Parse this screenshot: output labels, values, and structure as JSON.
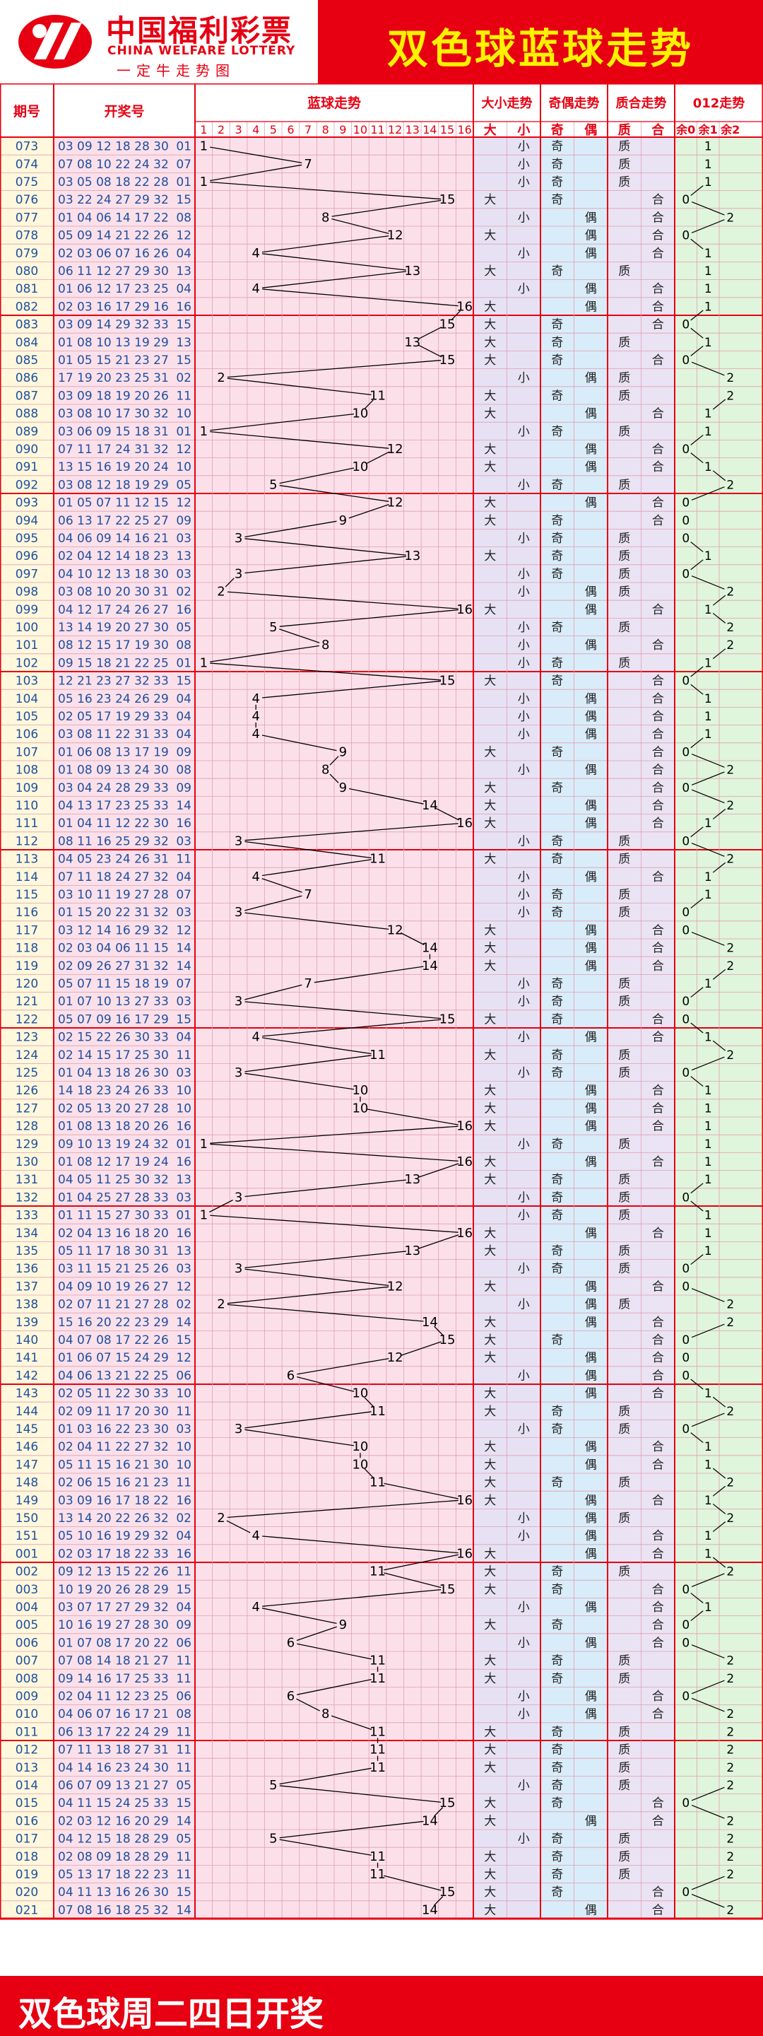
{
  "header": {
    "logo_cn": "中国福利彩票",
    "logo_en": "CHINA WELFARE LOTTERY",
    "logo_sub": "一定牛走势图",
    "title": "双色球蓝球走势"
  },
  "footer": {
    "text": "双色球周二四日开奖"
  },
  "colors": {
    "red": "#e60012",
    "yellow": "#fff200",
    "grid": "#e0a0b0",
    "blue_text": "#1f4fa0",
    "pink_bg": "#fbe0ea",
    "purple_bg": "#e6e2f4",
    "blue_bg": "#d9ecf9",
    "lilac_bg": "#eae3f4",
    "green_bg": "#dff5dc",
    "issue_bg": "#fff8dc"
  },
  "labels": {
    "issue": "期号",
    "draw": "开奖号",
    "blue": "蓝球走势",
    "size": "大小走势",
    "parity": "奇偶走势",
    "prime": "质合走势",
    "mod": "012走势",
    "big": "大",
    "small": "小",
    "odd": "奇",
    "even": "偶",
    "prime_l": "质",
    "comp_l": "合",
    "r0": "余0",
    "r1": "余1",
    "r2": "余2"
  },
  "chart_data": {
    "type": "line",
    "x_label": "期号",
    "y_label": "蓝球",
    "blue_range": [
      1,
      16
    ],
    "draws": [
      {
        "issue": "073",
        "reds": "03 09 12 18 28 30",
        "blue": 1
      },
      {
        "issue": "074",
        "reds": "07 08 10 22 24 32",
        "blue": 7
      },
      {
        "issue": "075",
        "reds": "03 05 08 18 22 28",
        "blue": 1
      },
      {
        "issue": "076",
        "reds": "03 22 24 27 29 32",
        "blue": 15
      },
      {
        "issue": "077",
        "reds": "01 04 06 14 17 22",
        "blue": 8
      },
      {
        "issue": "078",
        "reds": "05 09 14 21 22 26",
        "blue": 12
      },
      {
        "issue": "079",
        "reds": "02 03 06 07 16 26",
        "blue": 4
      },
      {
        "issue": "080",
        "reds": "06 11 12 27 29 30",
        "blue": 13
      },
      {
        "issue": "081",
        "reds": "01 06 12 17 23 25",
        "blue": 4
      },
      {
        "issue": "082",
        "reds": "02 03 16 17 29 16",
        "blue": 16
      },
      {
        "issue": "083",
        "reds": "03 09 14 29 32 33",
        "blue": 15
      },
      {
        "issue": "084",
        "reds": "01 08 10 13 19 29",
        "blue": 13
      },
      {
        "issue": "085",
        "reds": "01 05 15 21 23 27",
        "blue": 15
      },
      {
        "issue": "086",
        "reds": "17 19 20 23 25 31",
        "blue": 2
      },
      {
        "issue": "087",
        "reds": "03 09 18 19 20 26",
        "blue": 11
      },
      {
        "issue": "088",
        "reds": "03 08 10 17 30 32",
        "blue": 10
      },
      {
        "issue": "089",
        "reds": "03 06 09 15 18 31",
        "blue": 1
      },
      {
        "issue": "090",
        "reds": "07 11 17 24 31 32",
        "blue": 12
      },
      {
        "issue": "091",
        "reds": "13 15 16 19 20 24",
        "blue": 10
      },
      {
        "issue": "092",
        "reds": "03 08 12 18 19 29",
        "blue": 5
      },
      {
        "issue": "093",
        "reds": "01 05 07 11 12 15",
        "blue": 12
      },
      {
        "issue": "094",
        "reds": "06 13 17 22 25 27",
        "blue": 9
      },
      {
        "issue": "095",
        "reds": "04 06 09 14 16 21",
        "blue": 3
      },
      {
        "issue": "096",
        "reds": "02 04 12 14 18 23",
        "blue": 13
      },
      {
        "issue": "097",
        "reds": "04 10 12 13 18 30",
        "blue": 3
      },
      {
        "issue": "098",
        "reds": "03 08 10 20 30 31",
        "blue": 2
      },
      {
        "issue": "099",
        "reds": "04 12 17 24 26 27",
        "blue": 16
      },
      {
        "issue": "100",
        "reds": "13 14 19 20 27 30",
        "blue": 5
      },
      {
        "issue": "101",
        "reds": "08 12 15 17 19 30",
        "blue": 8
      },
      {
        "issue": "102",
        "reds": "09 15 18 21 22 25",
        "blue": 1
      },
      {
        "issue": "103",
        "reds": "12 21 23 27 32 33",
        "blue": 15
      },
      {
        "issue": "104",
        "reds": "05 16 23 24 26 29",
        "blue": 4
      },
      {
        "issue": "105",
        "reds": "02 05 17 19 29 33",
        "blue": 4
      },
      {
        "issue": "106",
        "reds": "03 08 11 22 31 33",
        "blue": 4
      },
      {
        "issue": "107",
        "reds": "01 06 08 13 17 19",
        "blue": 9
      },
      {
        "issue": "108",
        "reds": "01 08 09 13 24 30",
        "blue": 8
      },
      {
        "issue": "109",
        "reds": "03 04 24 28 29 33",
        "blue": 9
      },
      {
        "issue": "110",
        "reds": "04 13 17 23 25 33",
        "blue": 14
      },
      {
        "issue": "111",
        "reds": "01 04 11 12 22 30",
        "blue": 16
      },
      {
        "issue": "112",
        "reds": "08 11 16 25 29 32",
        "blue": 3
      },
      {
        "issue": "113",
        "reds": "04 05 23 24 26 31",
        "blue": 11
      },
      {
        "issue": "114",
        "reds": "07 11 18 24 27 32",
        "blue": 4
      },
      {
        "issue": "115",
        "reds": "03 10 11 19 27 28",
        "blue": 7
      },
      {
        "issue": "116",
        "reds": "01 15 20 22 31 32",
        "blue": 3
      },
      {
        "issue": "117",
        "reds": "03 12 14 16 29 32",
        "blue": 12
      },
      {
        "issue": "118",
        "reds": "02 03 04 06 11 15",
        "blue": 14
      },
      {
        "issue": "119",
        "reds": "02 09 26 27 31 32",
        "blue": 14
      },
      {
        "issue": "120",
        "reds": "05 07 11 15 18 19",
        "blue": 7
      },
      {
        "issue": "121",
        "reds": "01 07 10 13 27 33",
        "blue": 3
      },
      {
        "issue": "122",
        "reds": "05 07 09 16 17 29",
        "blue": 15
      },
      {
        "issue": "123",
        "reds": "02 15 22 26 30 33",
        "blue": 4
      },
      {
        "issue": "124",
        "reds": "02 14 15 17 25 30",
        "blue": 11
      },
      {
        "issue": "125",
        "reds": "01 04 13 18 26 30",
        "blue": 3
      },
      {
        "issue": "126",
        "reds": "14 18 23 24 26 33",
        "blue": 10
      },
      {
        "issue": "127",
        "reds": "02 05 13 20 27 28",
        "blue": 10
      },
      {
        "issue": "128",
        "reds": "01 08 13 18 20 26",
        "blue": 16
      },
      {
        "issue": "129",
        "reds": "09 10 13 19 24 32",
        "blue": 1
      },
      {
        "issue": "130",
        "reds": "01 08 12 17 19 24",
        "blue": 16
      },
      {
        "issue": "131",
        "reds": "04 05 11 25 30 32",
        "blue": 13
      },
      {
        "issue": "132",
        "reds": "01 04 25 27 28 33",
        "blue": 3
      },
      {
        "issue": "133",
        "reds": "01 11 15 27 30 33",
        "blue": 1
      },
      {
        "issue": "134",
        "reds": "02 04 13 16 18 20",
        "blue": 16
      },
      {
        "issue": "135",
        "reds": "05 11 17 18 30 31",
        "blue": 13
      },
      {
        "issue": "136",
        "reds": "03 11 15 21 25 26",
        "blue": 3
      },
      {
        "issue": "137",
        "reds": "04 09 10 19 26 27",
        "blue": 12
      },
      {
        "issue": "138",
        "reds": "02 07 11 21 27 28",
        "blue": 2
      },
      {
        "issue": "139",
        "reds": "15 16 20 22 23 29",
        "blue": 14
      },
      {
        "issue": "140",
        "reds": "04 07 08 17 22 26",
        "blue": 15
      },
      {
        "issue": "141",
        "reds": "01 06 07 15 24 29",
        "blue": 12
      },
      {
        "issue": "142",
        "reds": "04 06 13 21 22 25",
        "blue": 6
      },
      {
        "issue": "143",
        "reds": "02 05 11 22 30 33",
        "blue": 10
      },
      {
        "issue": "144",
        "reds": "02 09 11 17 20 30",
        "blue": 11
      },
      {
        "issue": "145",
        "reds": "01 03 16 22 23 30",
        "blue": 3
      },
      {
        "issue": "146",
        "reds": "02 04 11 22 27 32",
        "blue": 10
      },
      {
        "issue": "147",
        "reds": "05 11 15 16 21 30",
        "blue": 10
      },
      {
        "issue": "148",
        "reds": "02 06 15 16 21 23",
        "blue": 11
      },
      {
        "issue": "149",
        "reds": "03 09 16 17 18 22",
        "blue": 16
      },
      {
        "issue": "150",
        "reds": "13 14 20 22 26 32",
        "blue": 2
      },
      {
        "issue": "151",
        "reds": "05 10 16 19 29 32",
        "blue": 4
      },
      {
        "issue": "001",
        "reds": "02 03 17 18 22 33",
        "blue": 16
      },
      {
        "issue": "002",
        "reds": "09 12 13 15 22 26",
        "blue": 11
      },
      {
        "issue": "003",
        "reds": "10 19 20 26 28 29",
        "blue": 15
      },
      {
        "issue": "004",
        "reds": "03 07 17 27 29 32",
        "blue": 4
      },
      {
        "issue": "005",
        "reds": "10 16 19 27 28 30",
        "blue": 9
      },
      {
        "issue": "006",
        "reds": "01 07 08 17 20 22",
        "blue": 6
      },
      {
        "issue": "007",
        "reds": "07 08 14 18 21 27",
        "blue": 11
      },
      {
        "issue": "008",
        "reds": "09 14 16 17 25 33",
        "blue": 11
      },
      {
        "issue": "009",
        "reds": "02 04 11 12 23 25",
        "blue": 6
      },
      {
        "issue": "010",
        "reds": "04 06 07 16 17 21",
        "blue": 8
      },
      {
        "issue": "011",
        "reds": "06 13 17 22 24 29",
        "blue": 11
      },
      {
        "issue": "012",
        "reds": "07 11 13 18 27 31",
        "blue": 11
      },
      {
        "issue": "013",
        "reds": "04 14 16 23 24 30",
        "blue": 11
      },
      {
        "issue": "014",
        "reds": "06 07 09 13 21 27",
        "blue": 5
      },
      {
        "issue": "015",
        "reds": "04 11 15 24 25 33",
        "blue": 15
      },
      {
        "issue": "016",
        "reds": "02 03 12 16 20 29",
        "blue": 14
      },
      {
        "issue": "017",
        "reds": "04 12 15 18 28 29",
        "blue": 5
      },
      {
        "issue": "018",
        "reds": "02 08 09 18 28 29",
        "blue": 11
      },
      {
        "issue": "019",
        "reds": "05 13 17 18 22 23",
        "blue": 11
      },
      {
        "issue": "020",
        "reds": "04 11 13 16 26 30",
        "blue": 15
      },
      {
        "issue": "021",
        "reds": "07 08 16 18 25 32",
        "blue": 14
      }
    ]
  }
}
